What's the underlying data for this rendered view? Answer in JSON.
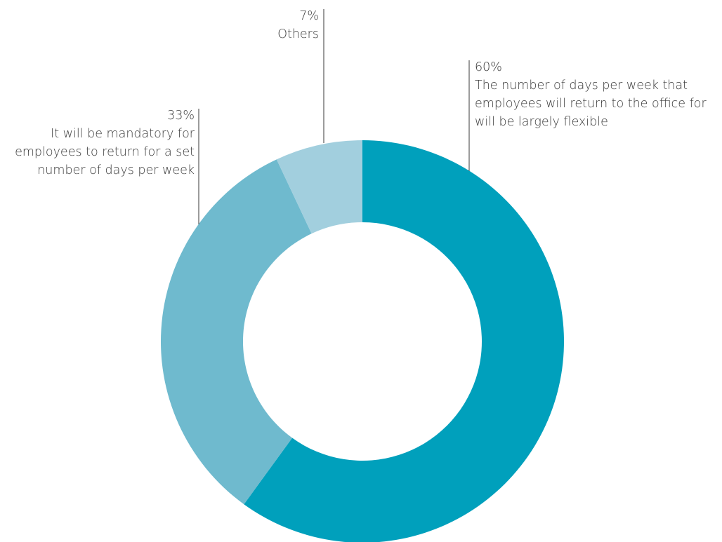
{
  "chart_data": {
    "type": "pie",
    "variant": "donut",
    "slices": [
      {
        "value": 60,
        "value_label": "60%",
        "label": "The number of days per week that employees will return to the office for will be largely flexible",
        "label_lines": [
          "The number of days per week that",
          "employees will return to the office for",
          "will be largely flexible"
        ],
        "color": "#00a0bc"
      },
      {
        "value": 33,
        "value_label": "33%",
        "label": "It will be mandatory for employees to return for a set number of days per week",
        "label_lines": [
          "It will be mandatory for",
          "employees to return for a set",
          "number of days per week"
        ],
        "color": "#6fbace"
      },
      {
        "value": 7,
        "value_label": "7%",
        "label": "Others",
        "label_lines": [
          "Others"
        ],
        "color": "#a2cfde"
      }
    ],
    "start_angle_deg": 0,
    "direction": "clockwise",
    "legend": "none"
  }
}
